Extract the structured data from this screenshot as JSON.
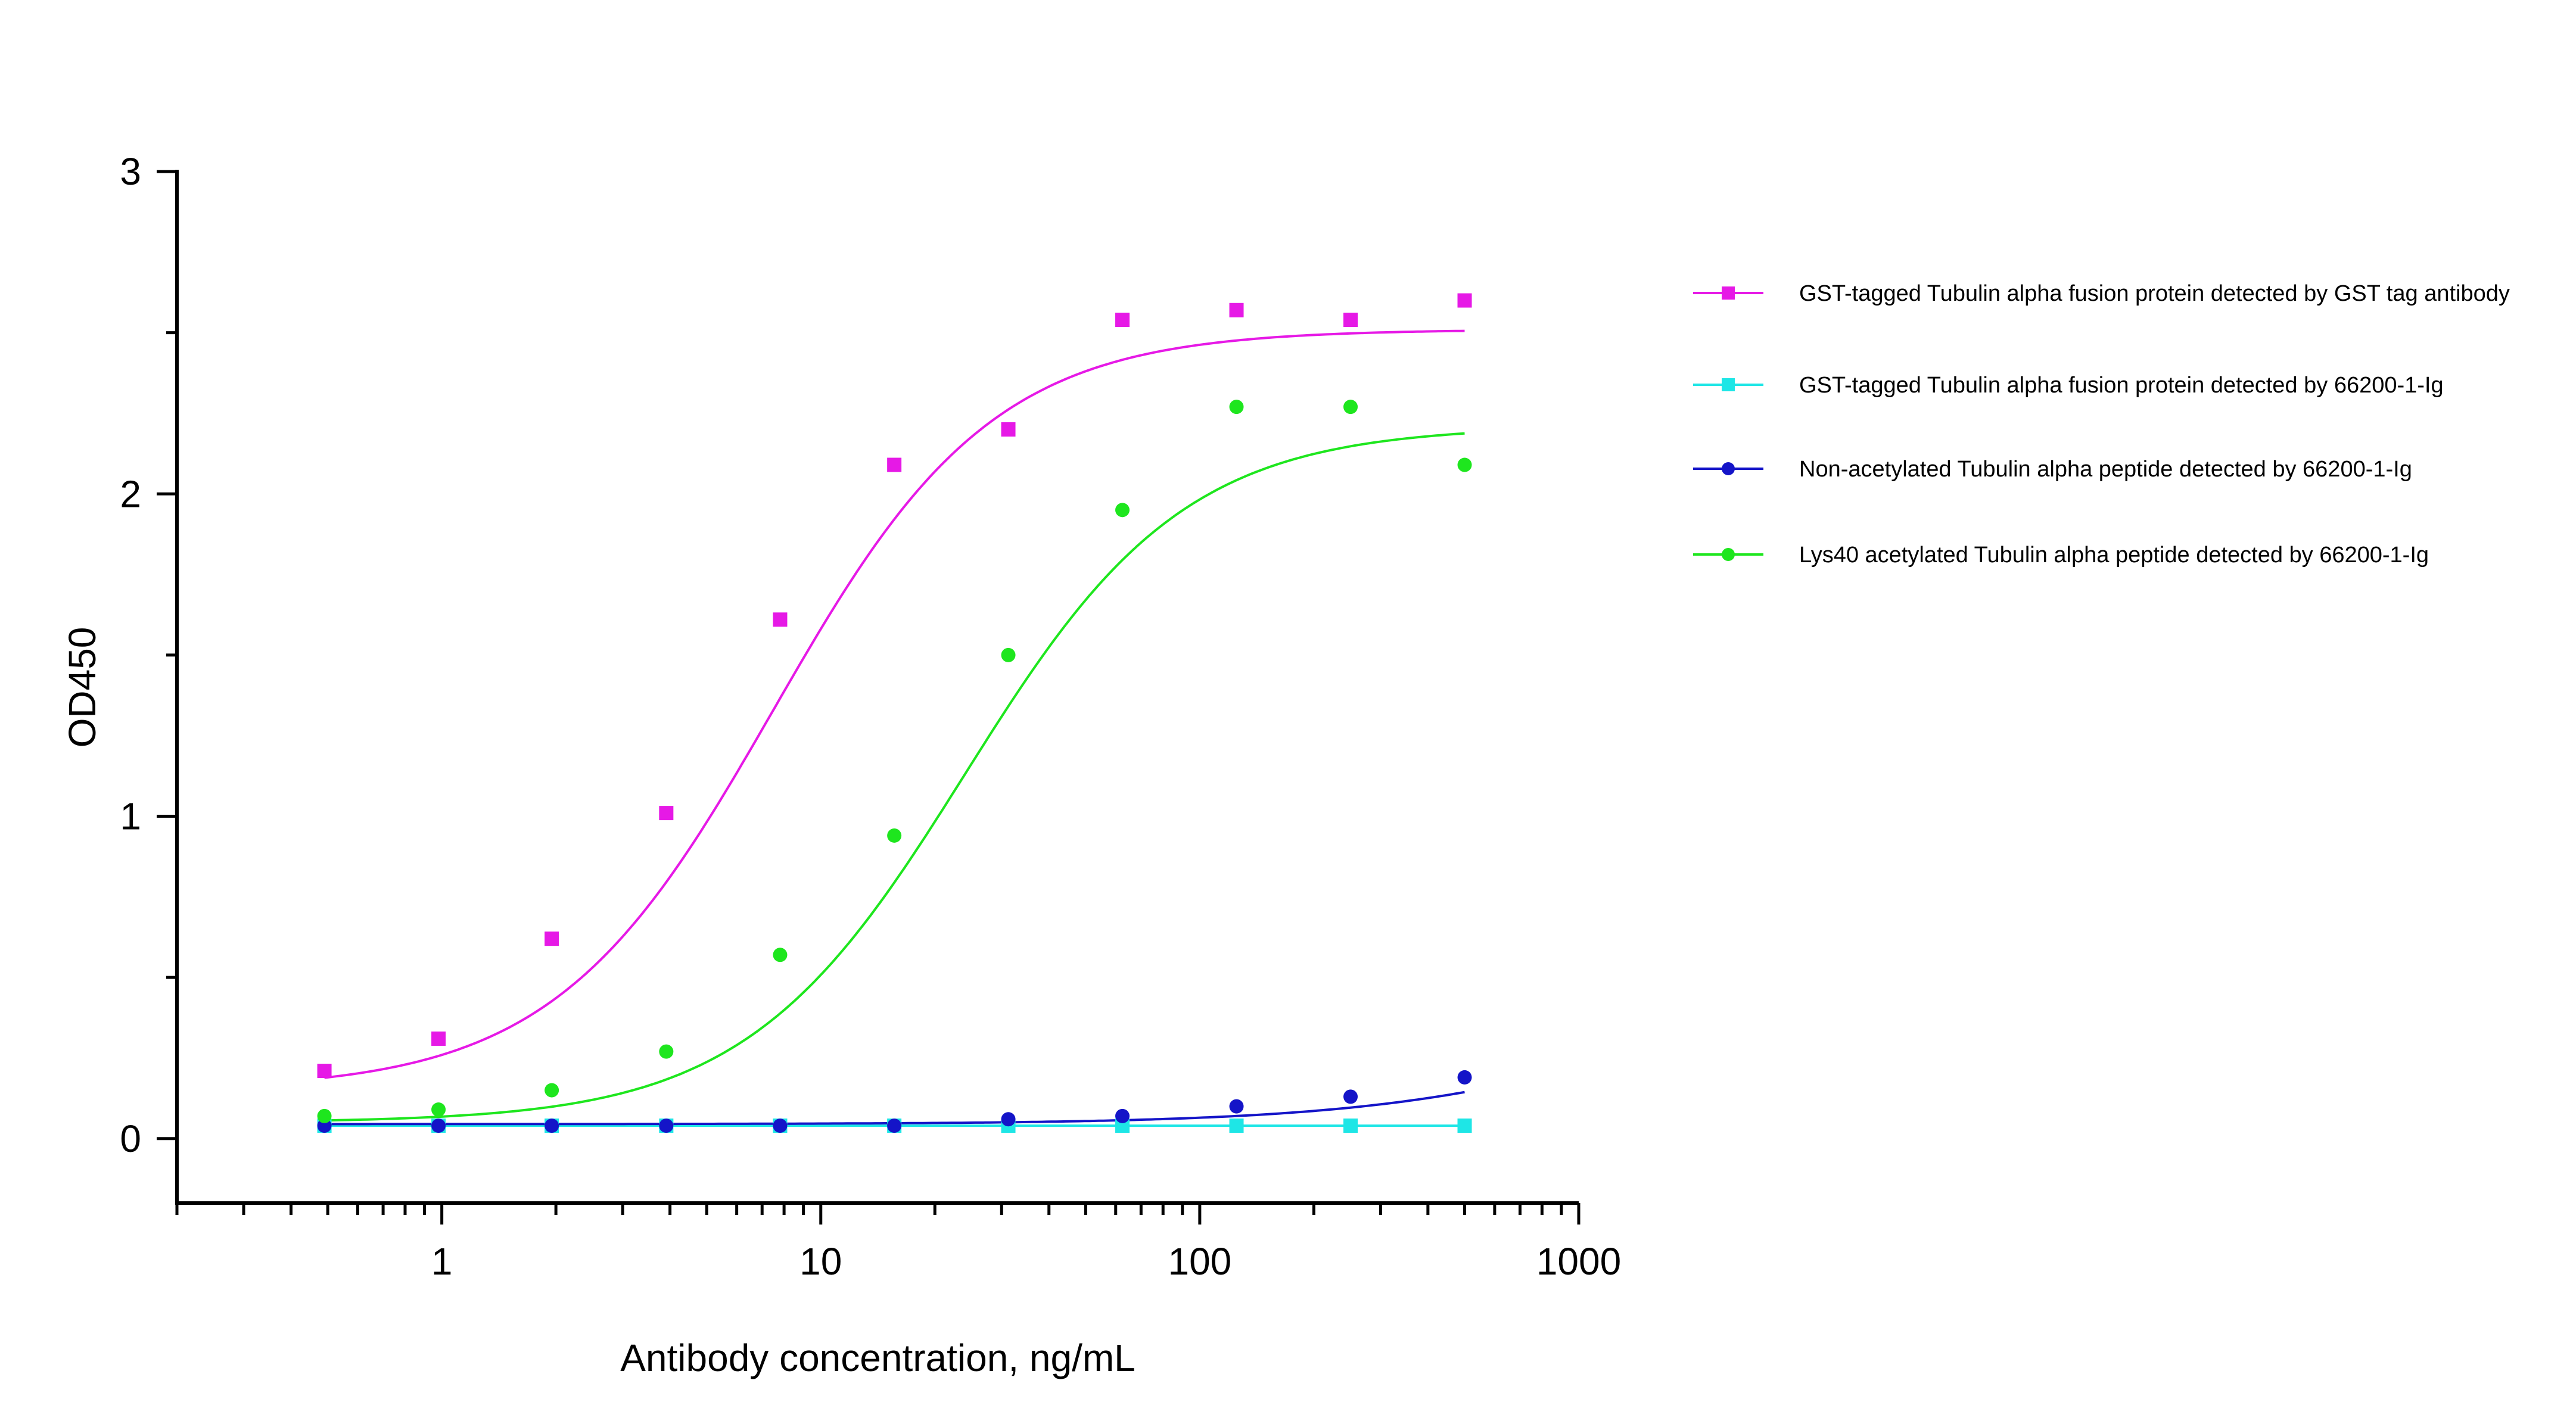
{
  "chart_data": {
    "type": "scatter",
    "title": "",
    "xlabel": "Antibody concentration, ng/mL",
    "ylabel": "OD450",
    "x_scale": "log",
    "xlim": [
      0.2,
      1000
    ],
    "ylim": [
      -0.2,
      3
    ],
    "x_ticks": [
      1,
      10,
      100,
      1000
    ],
    "x_tick_labels": [
      "1",
      "10",
      "100",
      "1000"
    ],
    "y_ticks": [
      0,
      1,
      2,
      3
    ],
    "y_tick_labels": [
      "0",
      "1",
      "2",
      "3"
    ],
    "grid": false,
    "legend_position": "right",
    "x": [
      0.49,
      0.98,
      1.95,
      3.91,
      7.81,
      15.63,
      31.25,
      62.5,
      125,
      250,
      500
    ],
    "series": [
      {
        "name": "GST-tagged Tubulin alpha fusion protein detected by GST tag antibody",
        "color": "#e619e6",
        "marker": "square",
        "values": [
          0.21,
          0.31,
          0.62,
          1.01,
          1.61,
          2.09,
          2.2,
          2.54,
          2.57,
          2.54,
          2.6
        ],
        "fit": {
          "bottom": 0.15,
          "top": 2.51,
          "ec50": 7.5,
          "hill": 1.5
        }
      },
      {
        "name": "GST-tagged Tubulin alpha fusion protein detected by 66200-1-Ig",
        "color": "#1ee6e6",
        "marker": "square",
        "values": [
          0.04,
          0.04,
          0.04,
          0.04,
          0.04,
          0.04,
          0.04,
          0.04,
          0.04,
          0.04,
          0.04
        ],
        "fit": {
          "bottom": 0.04,
          "top": 0.04,
          "ec50": 10,
          "hill": 1
        }
      },
      {
        "name": "Non-acetylated Tubulin alpha peptide detected by 66200-1-Ig",
        "color": "#1414c8",
        "marker": "circle",
        "values": [
          0.04,
          0.04,
          0.04,
          0.04,
          0.04,
          0.04,
          0.06,
          0.07,
          0.1,
          0.13,
          0.19
        ],
        "fit": {
          "bottom": 0.045,
          "top": 0.6,
          "ec50": 2000,
          "hill": 1.1
        }
      },
      {
        "name": "Lys40 acetylated Tubulin alpha peptide detected by 66200-1-Ig",
        "color": "#1ee61e",
        "marker": "circle",
        "values": [
          0.07,
          0.09,
          0.15,
          0.27,
          0.57,
          0.94,
          1.5,
          1.95,
          2.27,
          2.27,
          2.09
        ],
        "fit": {
          "bottom": 0.05,
          "top": 2.21,
          "ec50": 24,
          "hill": 1.5
        }
      }
    ]
  }
}
